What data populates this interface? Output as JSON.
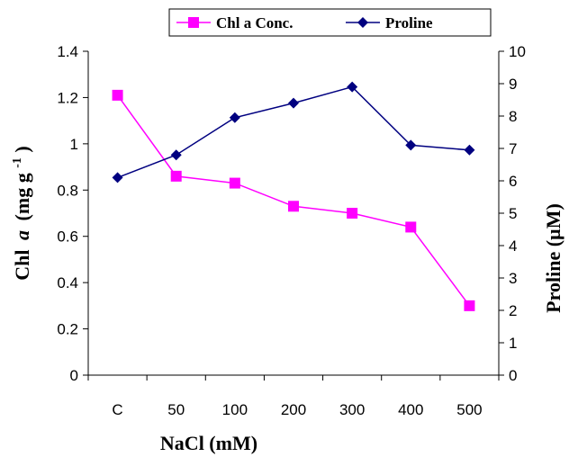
{
  "chart_data": {
    "type": "line",
    "categories": [
      "C",
      "50",
      "100",
      "200",
      "300",
      "400",
      "500"
    ],
    "xlabel": "NaCl (mM)",
    "y_left": {
      "label_main": "Chl",
      "label_var": "a",
      "label_unit": "(mg g",
      "label_sup": "-1",
      "label_close": ")",
      "ylim": [
        0,
        1.4
      ],
      "ticks": [
        "0",
        "0.2",
        "0.4",
        "0.6",
        "0.8",
        "1",
        "1.2",
        "1.4"
      ]
    },
    "y_right": {
      "label": "Proline (µM)",
      "ylim": [
        0,
        10
      ],
      "ticks": [
        "0",
        "1",
        "2",
        "3",
        "4",
        "5",
        "6",
        "7",
        "8",
        "9",
        "10"
      ]
    },
    "series": [
      {
        "name": "Chl a Conc.",
        "axis": "left",
        "color": "#ff00ff",
        "marker": "square",
        "values": [
          1.21,
          0.86,
          0.83,
          0.73,
          0.7,
          0.64,
          0.3
        ]
      },
      {
        "name": "Proline",
        "axis": "right",
        "color": "#000080",
        "marker": "diamond",
        "values": [
          6.1,
          6.8,
          7.95,
          8.4,
          8.9,
          7.1,
          6.95
        ]
      }
    ],
    "legend_position": "top"
  }
}
